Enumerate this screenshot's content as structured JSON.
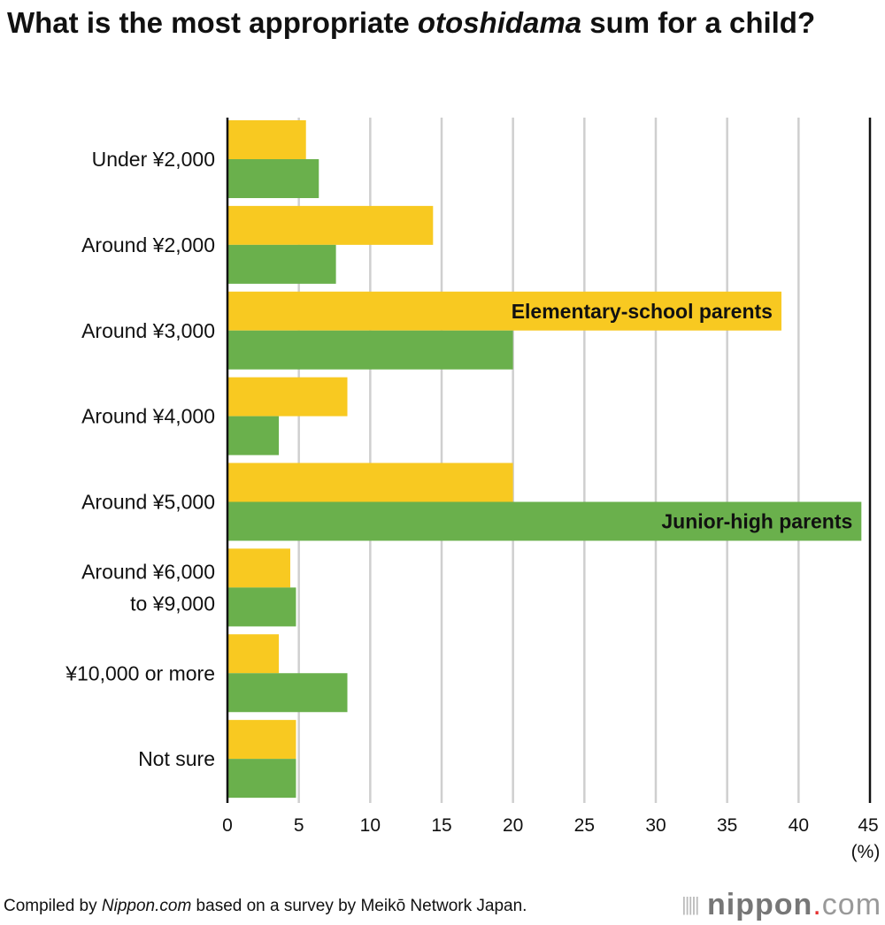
{
  "title": {
    "part1": "What is the most appropriate ",
    "italic": "otoshidama",
    "part2": " sum for a child?"
  },
  "footer": {
    "prefix": "Compiled by ",
    "italic": "Nippon.com",
    "suffix": " based on a survey by Meikō Network Japan."
  },
  "logo": {
    "name": "nippon",
    "dot": ".",
    "tld": "com"
  },
  "chart_data": {
    "type": "bar",
    "orientation": "horizontal",
    "title": "What is the most appropriate otoshidama sum for a child?",
    "categories": [
      [
        "Under ¥2,000"
      ],
      [
        "Around ¥2,000"
      ],
      [
        "Around ¥3,000"
      ],
      [
        "Around ¥4,000"
      ],
      [
        "Around ¥5,000"
      ],
      [
        "Around ¥6,000",
        "to ¥9,000"
      ],
      [
        "¥10,000 or more"
      ],
      [
        "Not sure"
      ]
    ],
    "series": [
      {
        "name": "Elementary-school parents",
        "color": "#F8C921",
        "values": [
          5.5,
          14.4,
          38.8,
          8.4,
          20.0,
          4.4,
          3.6,
          4.8
        ],
        "label_category": 2
      },
      {
        "name": "Junior-high parents",
        "color": "#6AB04C",
        "values": [
          6.4,
          7.6,
          20.0,
          3.6,
          44.4,
          4.8,
          8.4,
          4.8
        ],
        "label_category": 4
      }
    ],
    "xlim": [
      0,
      45
    ],
    "xticks": [
      0,
      5,
      10,
      15,
      20,
      25,
      30,
      35,
      40,
      45
    ],
    "xlabel": "(%)",
    "grid": true
  }
}
